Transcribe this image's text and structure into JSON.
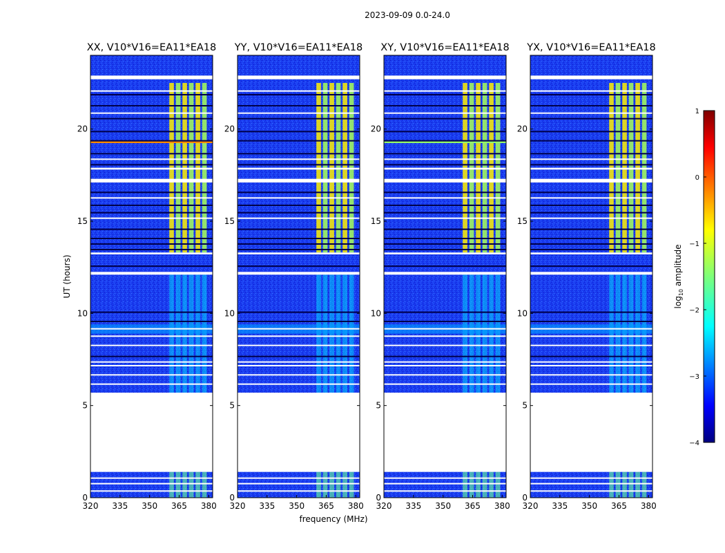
{
  "chart_data": {
    "type": "heatmap",
    "suptitle": "2023-09-09 0.0-24.0",
    "xlabel": "frequency (MHz)",
    "ylabel": "UT (hours)",
    "xlim": [
      320,
      382
    ],
    "ylim": [
      0,
      24
    ],
    "x_ticks": [
      320,
      335,
      350,
      365,
      380
    ],
    "y_ticks": [
      0,
      5,
      10,
      15,
      20
    ],
    "colorbar": {
      "label": "log₁₀ amplitude",
      "label_main": "log",
      "label_sub": "10",
      "label_rest": " amplitude",
      "range": [
        -4,
        1
      ],
      "ticks": [
        -4,
        -3,
        -2,
        -1,
        0,
        1
      ],
      "colormap": "jet"
    },
    "panels": [
      {
        "title": "XX, V10*V16=EA11*EA18"
      },
      {
        "title": "YY, V10*V16=EA11*EA18"
      },
      {
        "title": "XY, V10*V16=EA11*EA18"
      },
      {
        "title": "YX, V10*V16=EA11*EA18"
      }
    ],
    "data_gaps_ut": [
      [
        1.4,
        5.7
      ],
      [
        12.1,
        12.25
      ],
      [
        13.2,
        13.3
      ],
      [
        17.1,
        17.3
      ],
      [
        17.8,
        17.9
      ],
      [
        22.7,
        22.9
      ]
    ],
    "interference_band_mhz": [
      360,
      380
    ],
    "strong_rfi_band_ut": [
      13.3,
      22.5
    ],
    "strong_rfi_peak_log_amp": -0.8,
    "background_log_amp": -3.4
  }
}
